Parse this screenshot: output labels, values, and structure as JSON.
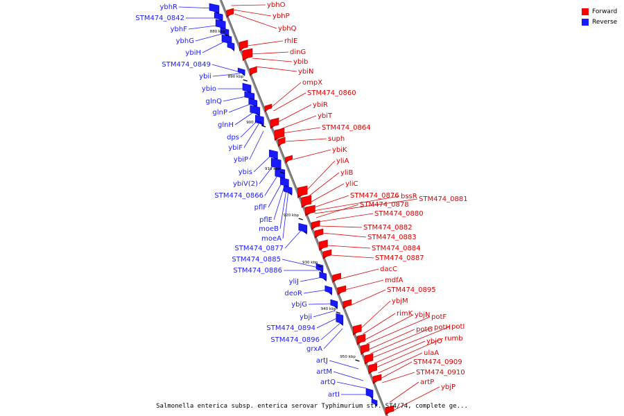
{
  "legend": {
    "forward_label": "Forward",
    "reverse_label": "Reverse",
    "forward_color": "#ff0000",
    "reverse_color": "#1a1aff"
  },
  "caption": "Salmonella enterica subsp. enterica serovar Typhimurium str. ST4/74, complete ge...",
  "ticks": [
    "880 kbp",
    "890 kbp",
    "900 kbp",
    "910 kbp",
    "920 kbp",
    "930 kbp",
    "940 kbp",
    "950 kbp"
  ],
  "reverse_genes": [
    "ybhR",
    "STM474_0842",
    "ybhF",
    "ybhG",
    "ybiH",
    "STM474_0849",
    "ybii",
    "ybio",
    "glnQ",
    "glnP",
    "glnH",
    "dps",
    "ybiF",
    "ybiP",
    "ybis",
    "ybiV(2)",
    "STM474_0866",
    "pflF",
    "pflE",
    "moeB",
    "moeA",
    "STM474_0877",
    "STM474_0885",
    "STM474_0886",
    "yliJ",
    "deoR",
    "ybjG",
    "ybji",
    "STM474_0894",
    "STM474_0896",
    "grxA",
    "artJ",
    "artM",
    "artQ",
    "artI"
  ],
  "forward_genes": [
    "ybhO",
    "ybhP",
    "ybhQ",
    "rhlE",
    "dinG",
    "ybib",
    "ybiN",
    "ompX",
    "STM474_0860",
    "ybiR",
    "ybiT",
    "STM474_0864",
    "suph",
    "ybiK",
    "yliA",
    "yliB",
    "yliC",
    "STM474_0876",
    "bssR",
    "STM474_0881",
    "STM474_0878",
    "STM474_0880",
    "STM474_0882",
    "STM474_0883",
    "STM474_0884",
    "STM474_0887",
    "dacC",
    "mdfA",
    "STM474_0895",
    "ybjM",
    "rimK",
    "ybjN",
    "potF",
    "potG",
    "potH",
    "potI",
    "ybjO",
    "rumb",
    "ulaA",
    "STM474_0909",
    "STM474_0910",
    "artP",
    "ybjP"
  ]
}
